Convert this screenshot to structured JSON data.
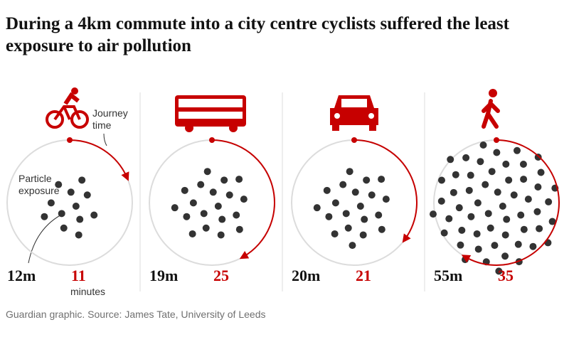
{
  "chart_data": {
    "type": "clock-dots",
    "title": "During a 4km commute into a city centre cyclists suffered the least exposure to air pollution",
    "series": [
      {
        "name": "Particle exposure",
        "color": "#333333",
        "values": [
          12,
          19,
          20,
          55
        ],
        "value_labels": [
          "12m",
          "19m",
          "20m",
          "55m"
        ]
      },
      {
        "name": "Journey time",
        "color": "#c70000",
        "values": [
          11,
          25,
          21,
          35
        ],
        "unit": "minutes"
      }
    ],
    "ylim": [
      0,
      60
    ],
    "source": "Guardian graphic. Source: James Tate, University of Leeds"
  }
}
